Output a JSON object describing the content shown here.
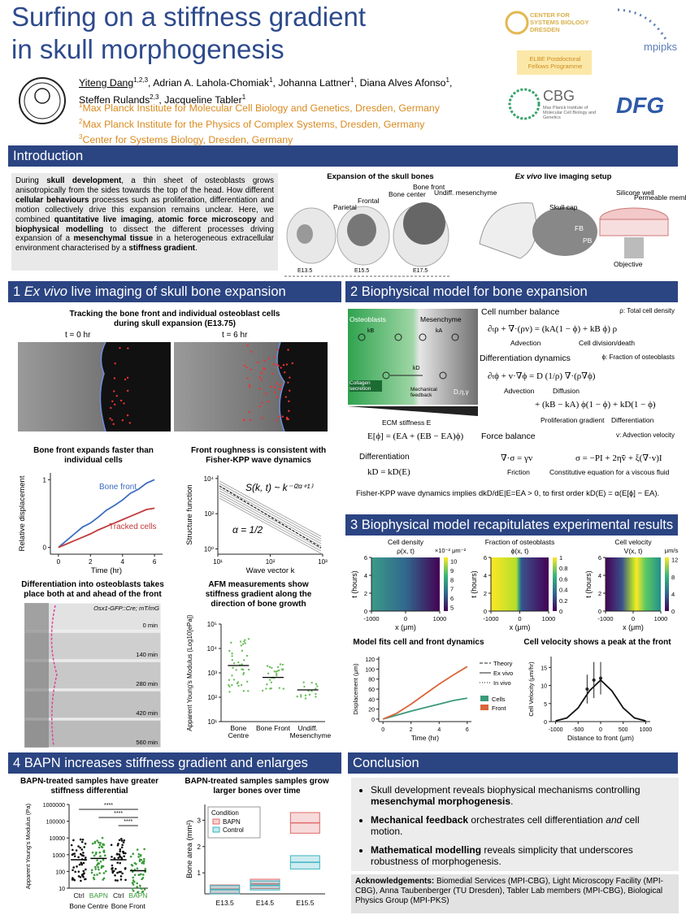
{
  "header": {
    "title_line1": "Surfing on a stiffness gradient",
    "title_line2": "in skull morphogenesis",
    "authors": [
      {
        "name": "Yiteng Dang",
        "sup": "1,2,3",
        "sep": ","
      },
      {
        "name": "Adrian A. Lahola-Chomiak",
        "sup": "1",
        "sep": ","
      },
      {
        "name": "Johanna Lattner",
        "sup": "1",
        "sep": ","
      },
      {
        "name": "Diana Alves Afonso",
        "sup": "1",
        "sep": ","
      },
      {
        "name": "Steffen Rulands",
        "sup": "2,3",
        "sep": ","
      },
      {
        "name": "Jacqueline Tabler",
        "sup": "1"
      }
    ],
    "affiliations": [
      {
        "sup": "1",
        "text": "Max Planck Institute for Molecular Cell Biology and Genetics, Dresden, Germany"
      },
      {
        "sup": "2",
        "text": "Max Planck Institute for the Physics of Complex Systems, Dresden, Germany"
      },
      {
        "sup": "3",
        "text": "Center for Systems Biology, Dresden, Germany"
      }
    ],
    "logos": {
      "csbd": "CENTER FOR SYSTEMS BIOLOGY DRESDEN",
      "mpipks": "mpipks",
      "elbe": "ELBE Postdoctoral Fellows Programme",
      "cbg": "CBG",
      "cbg_sub": "Max Planck Institute of Molecular Cell Biology and Genetics",
      "dfg": "DFG"
    }
  },
  "intro": {
    "heading": "Introduction",
    "text": [
      {
        "t": "During "
      },
      {
        "t": "skull development",
        "b": true
      },
      {
        "t": ", a thin sheet of osteoblasts grows anisotropically from the sides towards the top of the head. How different "
      },
      {
        "t": "cellular behaviours",
        "b": true
      },
      {
        "t": " processes such as proliferation, differentiation and motion collectively drive this expansion remains unclear. Here, we combined "
      },
      {
        "t": "quantitative live imaging",
        "b": true
      },
      {
        "t": ", "
      },
      {
        "t": "atomic force microscopy",
        "b": true
      },
      {
        "t": " and "
      },
      {
        "t": "biophysical modelling",
        "b": true
      },
      {
        "t": " to dissect the different processes driving expansion of a "
      },
      {
        "t": "mesenchymal tissue",
        "b": true
      },
      {
        "t": " in a heterogeneous extracellular environment characterised by a "
      },
      {
        "t": "stiffness gradient",
        "b": true
      },
      {
        "t": "."
      }
    ],
    "skull_title": "Expansion of the skull bones",
    "labels": [
      "Parietal",
      "Frontal",
      "Bone center",
      "Bone front",
      "Undiff. mesenchyme"
    ],
    "stages": [
      "E13.5",
      "E15.5",
      "E17.5"
    ],
    "setup_title": [
      {
        "t": "Ex vivo",
        "i": true
      },
      {
        "t": " live imaging setup"
      }
    ],
    "setup_labels": [
      "Skull cap",
      "FB",
      "PB",
      "Silicone well",
      "Permeable membrane",
      "Objective"
    ]
  },
  "s1": {
    "heading": [
      {
        "t": "1 "
      },
      {
        "t": "Ex vivo",
        "i": true
      },
      {
        "t": " live imaging of skull bone expansion"
      }
    ],
    "tracking_title": "Tracking the bone front and individual osteoblast cells during skull expansion (E13.75)",
    "t0": "t = 0 hr",
    "t6": "t = 6 hr",
    "displacement": {
      "title": "Bone front expands faster than individual cells",
      "xlabel": "Time (hr)",
      "ylabel": "Relative displacement",
      "xlim": [
        -0.5,
        6.5
      ],
      "ylim": [
        -0.1,
        1.1
      ],
      "xticks": [
        0,
        2,
        4,
        6
      ],
      "yticks": [
        0,
        1
      ],
      "x": [
        0,
        0.5,
        1,
        1.5,
        2,
        2.5,
        3,
        3.5,
        4,
        4.5,
        5,
        5.5,
        6
      ],
      "series": [
        {
          "name": "Bone front",
          "color": "#3b6cc0",
          "values": [
            0,
            0.1,
            0.2,
            0.3,
            0.36,
            0.45,
            0.55,
            0.62,
            0.7,
            0.8,
            0.86,
            0.95,
            1.0
          ]
        },
        {
          "name": "Tracked cells",
          "color": "#c23b3b",
          "values": [
            0,
            0.05,
            0.1,
            0.15,
            0.2,
            0.26,
            0.31,
            0.36,
            0.41,
            0.46,
            0.51,
            0.56,
            0.58
          ]
        }
      ]
    },
    "roughness": {
      "title": "Front roughness is consistent with Fisher-KPP wave dynamics",
      "xlabel": "Wave vector k",
      "ylabel": "Structure function",
      "xlog": true,
      "ylog": true,
      "xlim": [
        10,
        1000
      ],
      "ylim": [
        0.5,
        15000
      ],
      "xticks": [
        {
          "value": 10,
          "label": "10¹"
        },
        {
          "value": 100,
          "label": "10²"
        },
        {
          "value": 1000,
          "label": "10³"
        }
      ],
      "yticks": [
        {
          "value": 1,
          "label": "10⁰"
        },
        {
          "value": 100,
          "label": "10²"
        },
        {
          "value": 10000,
          "label": "10⁴"
        }
      ],
      "formula": "S(k, t) ~ k⁻⁽²ᵅ⁺¹⁾",
      "alpha": "α = 1/2"
    },
    "differentiation_title": "Differentiation into osteoblasts takes place both at and ahead of the front",
    "reporter": "Osx1-GFP::Cre; mT/mG",
    "times": [
      "0 min",
      "140 min",
      "280 min",
      "420 min",
      "560 min"
    ],
    "afm": {
      "title": "AFM measurements show stiffness gradient along the direction of bone growth",
      "ylabel": "Apparent Young's Modulus (Log10[ePa])",
      "ylog": true,
      "ylim": [
        10,
        100000
      ],
      "yticks": [
        {
          "value": 10,
          "label": "10¹"
        },
        {
          "value": 100,
          "label": "10²"
        },
        {
          "value": 1000,
          "label": "10³"
        },
        {
          "value": 10000,
          "label": "10⁴"
        },
        {
          "value": 100000,
          "label": "10⁵"
        }
      ],
      "categories": [
        "Bone Centre",
        "Bone Front",
        "Undiff. Mesenchyme"
      ],
      "medians": [
        2000,
        650,
        200
      ],
      "color": "#6cbf5c"
    }
  },
  "s2": {
    "heading": "2 Biophysical model for bone expansion",
    "diagram": {
      "osteoblasts": "Osteoblasts",
      "mesenchyme": "Mesenchyme",
      "kb": "kB",
      "ka": "kA",
      "kd": "kD",
      "collagen": "Collagen secretion",
      "feedback": "Mechanical feedback",
      "params": "D,η,γ",
      "ecm": "ECM stiffness E"
    },
    "cell_number": "Cell number balance",
    "rho_def": "ρ: Total cell density",
    "eq1": "∂ₜρ + ∇·(ρv) = (kA(1 − ϕ) + kB ϕ) ρ",
    "eq1_labels": [
      "Advection",
      "Cell division/death"
    ],
    "diff_dyn": "Differentiation dynamics",
    "phi_def": "ϕ: Fraction of osteoblasts",
    "eq2": "∂ₜϕ + v·∇ϕ = D (1/ρ) ∇·(ρ∇ϕ)",
    "eq2_labels": [
      "Advection",
      "Diffusion"
    ],
    "eq3": "+ (kB − kA) ϕ(1 − ϕ) + kD(1 − ϕ)",
    "eq3_labels": [
      "Proliferation gradient",
      "Differentiation"
    ],
    "eq_E": "E[ϕ] = (EA + (EB − EA)ϕ)",
    "differentiation": "Differentiation",
    "eq_kd": "kD = kD(E)",
    "force": "Force balance",
    "v_def": "v: Advection velocity",
    "eq_f1": "∇·σ = γv",
    "eq_f2": "σ = −PI + 2η̃ṽ + ξ(∇·v)I",
    "force_labels": [
      "Friction",
      "Constitutive equation for a viscous fluid"
    ],
    "fisher": "Fisher-KPP wave dynamics implies dkD/dE|E=EA > 0, to first order kD(E) = α(E[ϕ] − EA)."
  },
  "s3": {
    "heading": "3 Biophysical model recapitulates experimental results",
    "maps": [
      {
        "title": "Cell density",
        "var": "ρ(x, t)",
        "unit": "×10⁻² μm⁻²",
        "xlabel": "x (μm)",
        "ylabel": "t (hours)",
        "xlim": [
          -1000,
          1000
        ],
        "ylim": [
          0,
          6
        ],
        "xticks": [
          -1000,
          0,
          1000
        ],
        "yticks": [
          0,
          2,
          4,
          6
        ],
        "clim": [
          4.6,
          10.4
        ],
        "cticks": [
          5,
          6,
          7,
          8,
          9,
          10
        ]
      },
      {
        "title": "Fraction of osteoblasts",
        "var": "ϕ(x, t)",
        "xlabel": "x (μm)",
        "ylabel": "t (hours)",
        "xlim": [
          -1000,
          1000
        ],
        "ylim": [
          0,
          6
        ],
        "xticks": [
          -1000,
          0,
          1000
        ],
        "yticks": [
          0,
          2,
          4,
          6
        ],
        "clim": [
          0,
          1
        ],
        "cticks": [
          0,
          0.2,
          0.4,
          0.6,
          0.8,
          1
        ]
      },
      {
        "title": "Cell velocity",
        "var": "V(x, t)",
        "unit": "μm/s",
        "xlabel": "x (μm)",
        "ylabel": "t (hours)",
        "xlim": [
          -1000,
          1000
        ],
        "ylim": [
          0,
          6
        ],
        "xticks": [
          -1000,
          0,
          1000
        ],
        "yticks": [
          0,
          2,
          4,
          6
        ],
        "clim": [
          0,
          12.5
        ],
        "cticks": [
          0,
          4,
          8,
          12
        ]
      }
    ],
    "fits": {
      "title": "Model fits cell and front dynamics",
      "xlabel": "Time (hr)",
      "ylabel": "Displacement (μm)",
      "xlim": [
        -0.3,
        6.3
      ],
      "ylim": [
        -5,
        125
      ],
      "xticks": [
        0,
        2,
        4,
        6
      ],
      "yticks": [
        0,
        20,
        40,
        60,
        80,
        100,
        120
      ],
      "x": [
        0,
        1,
        2,
        3,
        4,
        5,
        6
      ],
      "series": [
        {
          "name": "Cells",
          "color": "#3a9a7a",
          "values": [
            0,
            8,
            16,
            23,
            30,
            37,
            42
          ]
        },
        {
          "name": "Front",
          "color": "#d9663a",
          "values": [
            0,
            12,
            30,
            50,
            70,
            88,
            105
          ]
        }
      ],
      "legend": [
        {
          "label": "Theory",
          "style": "dashed"
        },
        {
          "label": "Ex vivo",
          "style": "solid"
        },
        {
          "label": "In vivo",
          "style": "dotted"
        }
      ]
    },
    "velocity": {
      "title": "Cell velocity shows a peak at the front",
      "xlabel": "Distance to front (μm)",
      "ylabel": "Cell Velocity (μm/hr)",
      "xlim": [
        -1100,
        1100
      ],
      "ylim": [
        0,
        18
      ],
      "xticks": [
        -1000,
        -500,
        0,
        500,
        1000
      ],
      "yticks": [
        0,
        5,
        10,
        15
      ],
      "x": [
        -1000,
        -750,
        -500,
        -250,
        0,
        250,
        500,
        750,
        1000
      ],
      "series": [
        {
          "color": "#111111",
          "values": [
            0.2,
            1,
            3.8,
            8.5,
            11.5,
            8.5,
            3.8,
            1,
            0.2
          ]
        }
      ],
      "points": {
        "x": [
          -300,
          -150,
          0
        ],
        "values": [
          9,
          11.5,
          12
        ],
        "err": [
          4,
          5,
          4.5
        ]
      }
    }
  },
  "s4": {
    "heading": "4 BAPN increases stiffness gradient and enlarges bone",
    "stiffness": {
      "title": "BAPN-treated samples have greater stiffness differential",
      "ylabel": "Apparent Young's Modulus (Pa)",
      "ylog": true,
      "ylim": [
        10,
        1000000
      ],
      "yticks": [
        10,
        100,
        1000,
        10000,
        100000,
        1000000
      ],
      "categories": [
        "Ctrl",
        "BAPN",
        "Ctrl",
        "BAPN"
      ],
      "colors": [
        "#111111",
        "#3a9a3a",
        "#111111",
        "#3a9a3a"
      ],
      "medians": [
        500,
        600,
        500,
        110
      ],
      "groups": [
        "Bone Centre",
        "Bone Front"
      ],
      "significance": [
        "****",
        "****",
        "****"
      ]
    },
    "area": {
      "title": "BAPN-treated samples samples grow larger bones over time",
      "ylabel": "Bone area (mm²)",
      "ylim": [
        0.2,
        3.6
      ],
      "yticks": [
        1,
        2,
        3
      ],
      "categories": [
        "E13.5",
        "E14.5",
        "E15.5"
      ],
      "legend_title": "Condition",
      "series": [
        {
          "name": "BAPN",
          "color": "#e06a6a",
          "values": [
            0.38,
            0.58,
            2.9
          ]
        },
        {
          "name": "Control",
          "color": "#3ab5c4",
          "values": [
            0.36,
            0.52,
            1.4
          ]
        }
      ]
    }
  },
  "conclusion": {
    "heading": "Conclusion",
    "bullets": [
      [
        {
          "t": "Skull development reveals biophysical mechanisms controlling "
        },
        {
          "t": "mesenchymal morphogenesis",
          "b": true
        },
        {
          "t": "."
        }
      ],
      [
        {
          "t": "Mechanical feedback",
          "b": true
        },
        {
          "t": " orchestrates cell differentiation "
        },
        {
          "t": "and",
          "i": true
        },
        {
          "t": " cell motion."
        }
      ],
      [
        {
          "t": "Mathematical modelling",
          "b": true
        },
        {
          "t": " reveals simplicity that underscores robustness of morphogenesis."
        }
      ]
    ],
    "ack": [
      {
        "t": "Acknowledgements:",
        "b": true
      },
      {
        "t": " Biomedial Services (MPI-CBG), Light Microscopy Facility (MPI-CBG), Anna Taubenberger (TU Dresden), Tabler Lab members (MPI-CBG), Biological Physics Group (MPI-PKS)"
      }
    ]
  }
}
